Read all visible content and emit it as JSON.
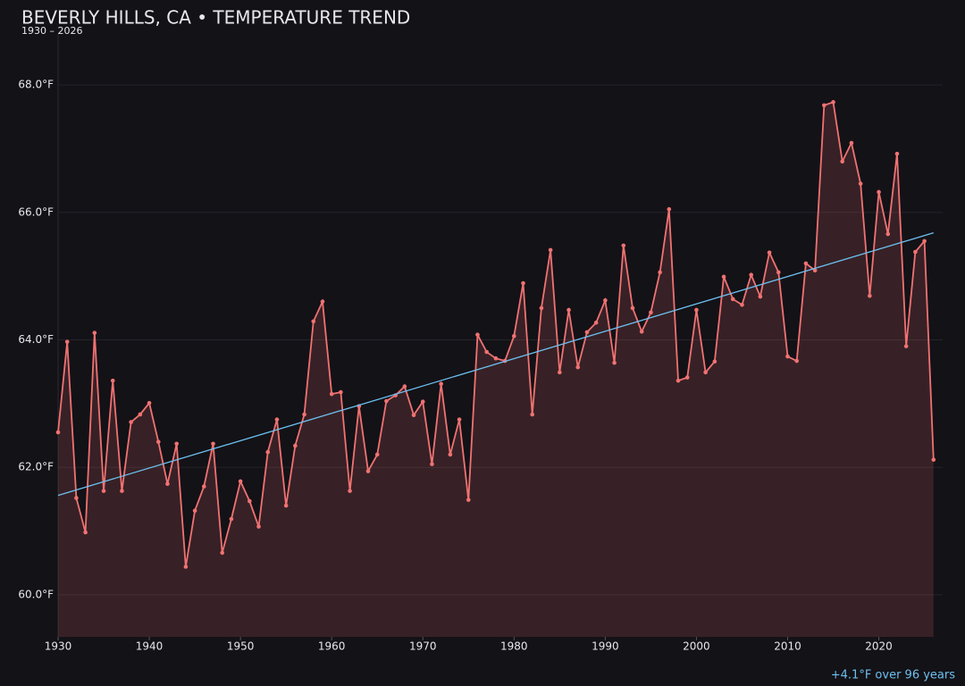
{
  "chart_data": {
    "type": "line",
    "title": "BEVERLY HILLS, CA • TEMPERATURE TREND",
    "subtitle": "1930 – 2026",
    "annotation": "+4.1°F over 96 years",
    "x": [
      1930,
      1931,
      1932,
      1933,
      1934,
      1935,
      1936,
      1937,
      1938,
      1939,
      1940,
      1941,
      1942,
      1943,
      1944,
      1945,
      1946,
      1947,
      1948,
      1949,
      1950,
      1951,
      1952,
      1953,
      1954,
      1955,
      1956,
      1957,
      1958,
      1959,
      1960,
      1961,
      1962,
      1963,
      1964,
      1965,
      1966,
      1967,
      1968,
      1969,
      1970,
      1971,
      1972,
      1973,
      1974,
      1975,
      1976,
      1977,
      1978,
      1979,
      1980,
      1981,
      1982,
      1983,
      1984,
      1985,
      1986,
      1987,
      1988,
      1989,
      1990,
      1991,
      1992,
      1993,
      1994,
      1995,
      1996,
      1997,
      1998,
      1999,
      2000,
      2001,
      2002,
      2003,
      2004,
      2005,
      2006,
      2007,
      2008,
      2009,
      2010,
      2011,
      2012,
      2013,
      2014,
      2015,
      2016,
      2017,
      2018,
      2019,
      2020,
      2021,
      2022,
      2023,
      2024,
      2025,
      2026
    ],
    "series": [
      {
        "color": "#f07272",
        "values": [
          62.55,
          63.97,
          61.52,
          60.98,
          64.11,
          61.63,
          63.36,
          61.63,
          62.71,
          62.83,
          63.01,
          62.4,
          61.74,
          62.37,
          60.44,
          61.32,
          61.7,
          62.37,
          60.66,
          61.19,
          61.78,
          61.47,
          61.07,
          62.24,
          62.75,
          61.4,
          62.34,
          62.83,
          64.29,
          64.6,
          63.15,
          63.18,
          61.63,
          62.96,
          61.94,
          62.2,
          63.04,
          63.13,
          63.27,
          62.82,
          63.03,
          62.05,
          63.31,
          62.2,
          62.75,
          61.49,
          64.08,
          63.81,
          63.71,
          63.67,
          64.06,
          64.89,
          62.83,
          64.5,
          65.41,
          63.49,
          64.47,
          63.57,
          64.12,
          64.27,
          64.62,
          63.64,
          65.48,
          64.5,
          64.13,
          64.43,
          65.06,
          66.05,
          63.36,
          63.41,
          64.47,
          63.49,
          63.66,
          64.99,
          64.64,
          64.55,
          65.02,
          64.68,
          65.37,
          65.06,
          63.74,
          63.67,
          65.2,
          65.09,
          67.68,
          67.73,
          66.8,
          67.09,
          66.45,
          64.69,
          66.32,
          65.66,
          66.92,
          63.9,
          65.38,
          65.55,
          62.12
        ]
      }
    ],
    "trend": {
      "color": "#6cc0f0",
      "x": [
        1930,
        2026
      ],
      "values": [
        61.56,
        65.68
      ]
    },
    "xlim": [
      1930,
      2027
    ],
    "xticks": [
      1930,
      1940,
      1950,
      1960,
      1970,
      1980,
      1990,
      2000,
      2010,
      2020
    ],
    "ylim": [
      59.34,
      68.8
    ],
    "yticks": [
      {
        "value": 60,
        "label": "60.0°F"
      },
      {
        "value": 62,
        "label": "62.0°F"
      },
      {
        "value": 64,
        "label": "64.0°F"
      },
      {
        "value": 66,
        "label": "66.0°F"
      },
      {
        "value": 68,
        "label": "68.0°F"
      }
    ],
    "grid": true
  }
}
